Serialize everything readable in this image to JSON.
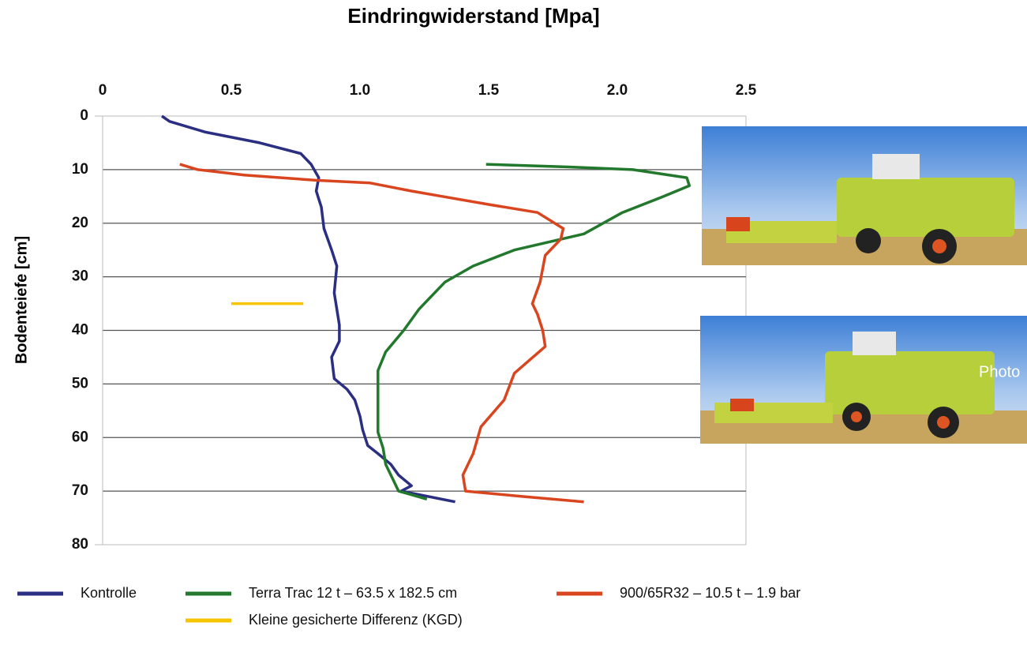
{
  "chart_data": {
    "type": "line",
    "title": "Eindringwiderstand [Mpa]",
    "y_label": "Bodenteiefe [cm]",
    "xlim": [
      0,
      2.5
    ],
    "xticks": [
      0,
      0.5,
      {
        "value": 1.0,
        "label": "1.0"
      },
      1.5,
      {
        "value": 2.0,
        "label": "2.0"
      },
      2.5
    ],
    "ylim": [
      0,
      80
    ],
    "yticks": [
      0,
      10,
      20,
      30,
      40,
      50,
      60,
      70,
      80
    ],
    "y_inverted": true,
    "grid": true,
    "series": [
      {
        "name": "Kontrolle",
        "color": "#2b2f82",
        "x": [
          0.23,
          0.26,
          0.4,
          0.61,
          0.77,
          0.81,
          0.84,
          0.83,
          0.85,
          0.86,
          0.89,
          0.91,
          0.9,
          0.92,
          0.92,
          0.89,
          0.9,
          0.95,
          0.98,
          1.0,
          1.01,
          1.03,
          1.07,
          1.12,
          1.15,
          1.2,
          1.16,
          1.37
        ],
        "y": [
          0,
          1,
          3,
          5,
          7,
          9,
          11.5,
          14,
          17,
          21,
          25,
          28,
          33,
          39,
          42,
          45,
          49,
          51,
          53,
          56,
          58.5,
          61.5,
          63,
          65,
          67,
          69,
          70,
          72
        ]
      },
      {
        "name": "Terra Trac 12 t – 63.5 x 182.5 cm",
        "color": "#22782c",
        "x": [
          1.49,
          1.81,
          2.06,
          2.27,
          2.28,
          2.18,
          2.02,
          1.87,
          1.6,
          1.44,
          1.33,
          1.23,
          1.17,
          1.1,
          1.07,
          1.07,
          1.07,
          1.09,
          1.1,
          1.13,
          1.15,
          1.26
        ],
        "y": [
          9,
          9.5,
          10,
          11.5,
          13,
          15,
          18,
          22,
          25,
          28,
          31,
          36,
          40,
          44,
          47.5,
          52,
          59,
          62,
          65,
          68,
          70,
          71.5
        ]
      },
      {
        "name": "900/65R32 – 10.5 t – 1.9 bar",
        "color": "#d8451e",
        "x": [
          0.3,
          0.37,
          0.55,
          0.83,
          1.04,
          1.2,
          1.32,
          1.5,
          1.69,
          1.79,
          1.78,
          1.72,
          1.7,
          1.67,
          1.69,
          1.71,
          1.72,
          1.6,
          1.56,
          1.47,
          1.44,
          1.4,
          1.41,
          1.63,
          1.87
        ],
        "y": [
          9,
          10,
          11,
          12,
          12.5,
          14,
          15,
          16.5,
          18,
          21,
          23,
          26,
          31,
          35,
          37,
          40,
          43,
          48,
          53,
          58,
          63,
          67,
          70,
          71,
          72
        ]
      },
      {
        "name": "Kleine gesicherte Differenz (KGD)",
        "color": "#f6c400",
        "x": [
          0.5,
          0.78
        ],
        "y": [
          35,
          35
        ]
      }
    ],
    "overlay_text": "Photo"
  }
}
